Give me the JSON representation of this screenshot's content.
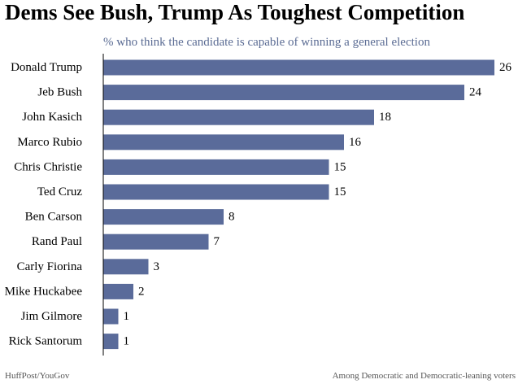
{
  "title": "Dems See Bush, Trump As Toughest Competition",
  "subtitle": "% who think the candidate is capable of winning a general election",
  "footer": {
    "source": "HuffPost/YouGov",
    "note": "Among Democratic and Democratic-leaning voters"
  },
  "colors": {
    "bar": "#5a6b9a",
    "subtitle": "#5a6b93"
  },
  "chart_data": {
    "type": "bar",
    "orientation": "horizontal",
    "categories": [
      "Donald Trump",
      "Jeb Bush",
      "John Kasich",
      "Marco Rubio",
      "Chris Christie",
      "Ted Cruz",
      "Ben Carson",
      "Rand Paul",
      "Carly Fiorina",
      "Mike Huckabee",
      "Jim Gilmore",
      "Rick Santorum"
    ],
    "values": [
      26,
      24,
      18,
      16,
      15,
      15,
      8,
      7,
      3,
      2,
      1,
      1
    ],
    "title": "Dems See Bush, Trump As Toughest Competition",
    "subtitle": "% who think the candidate is capable of winning a general election",
    "xlim": [
      0,
      26
    ],
    "grid": false,
    "data_labels": true
  }
}
